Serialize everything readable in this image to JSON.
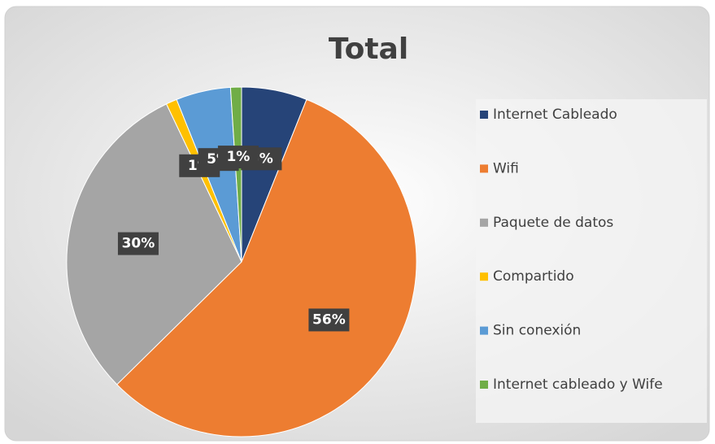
{
  "chart_data": {
    "type": "pie",
    "title": "Total",
    "categories": [
      "Internet Cableado",
      "Wifi",
      "Paquete de datos",
      "Compartido",
      "Sin conexión",
      "Internet cableado y Wife"
    ],
    "values": [
      6,
      56,
      30,
      1,
      5,
      1
    ],
    "value_labels": [
      "6%",
      "56%",
      "30%",
      "1%",
      "5%",
      "1%"
    ],
    "colors": [
      "#264478",
      "#ed7d31",
      "#a5a5a5",
      "#ffc000",
      "#5b9bd5",
      "#70ad47"
    ],
    "legend": "right"
  }
}
